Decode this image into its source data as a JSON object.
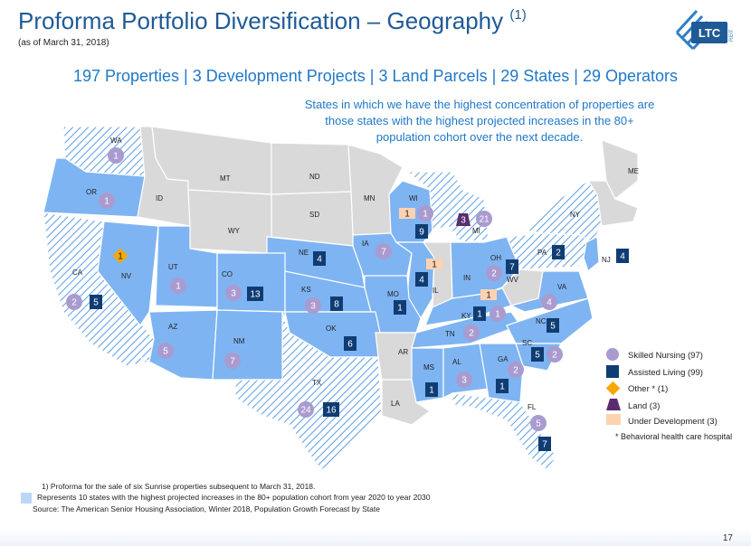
{
  "header": {
    "title": "Proforma Portfolio Diversification – Geography",
    "title_sup": "(1)",
    "as_of": "(as of March 31, 2018)",
    "logo_text": "LTC",
    "logo_subtext": "REIT"
  },
  "headline": "197 Properties | 3 Development Projects | 3 Land Parcels | 29 States | 29 Operators",
  "callout": "States in which we have the highest concentration of properties are those states with the highest projected increases in the 80+ population cohort over the next decade.",
  "colors": {
    "highlighted_state": "#7fb4f2",
    "other_state": "#d9d9d9",
    "hatch": "#5b9ee8",
    "skilled_nursing": "#a99bd0",
    "assisted_living": "#0f3d73",
    "other": "#f5a800",
    "land": "#5a2d6f",
    "under_development": "#fbd3b0",
    "title": "#1f5a96"
  },
  "states": [
    {
      "abbr": "WA",
      "style": "hatch",
      "skilled": "1"
    },
    {
      "abbr": "OR",
      "style": "blue",
      "skilled": "1"
    },
    {
      "abbr": "ID",
      "style": "gray"
    },
    {
      "abbr": "MT",
      "style": "gray"
    },
    {
      "abbr": "ND",
      "style": "gray"
    },
    {
      "abbr": "MN",
      "style": "gray"
    },
    {
      "abbr": "WI",
      "style": "blue",
      "skilled": "1",
      "assisted": "9",
      "underdev": "1"
    },
    {
      "abbr": "MI",
      "style": "hatch",
      "skilled": "21",
      "land": "3"
    },
    {
      "abbr": "SD",
      "style": "gray"
    },
    {
      "abbr": "WY",
      "style": "gray"
    },
    {
      "abbr": "NE",
      "style": "blue",
      "assisted": "4"
    },
    {
      "abbr": "IA",
      "style": "blue",
      "skilled": "7"
    },
    {
      "abbr": "IL",
      "style": "blue",
      "assisted": "4",
      "underdev": "1"
    },
    {
      "abbr": "IN",
      "style": "gray"
    },
    {
      "abbr": "OH",
      "style": "blue",
      "skilled": "2",
      "assisted": "7"
    },
    {
      "abbr": "PA",
      "style": "hatch",
      "assisted": "2"
    },
    {
      "abbr": "NY",
      "style": "hatch"
    },
    {
      "abbr": "ME",
      "style": "gray"
    },
    {
      "abbr": "NJ",
      "style": "blue",
      "assisted": "4"
    },
    {
      "abbr": "CA",
      "style": "hatch",
      "skilled": "2",
      "assisted": "5"
    },
    {
      "abbr": "NV",
      "style": "blue",
      "other": "1"
    },
    {
      "abbr": "UT",
      "style": "blue",
      "skilled": "1"
    },
    {
      "abbr": "CO",
      "style": "blue",
      "skilled": "3",
      "assisted": "13"
    },
    {
      "abbr": "KS",
      "style": "blue",
      "skilled": "3",
      "assisted": "8"
    },
    {
      "abbr": "MO",
      "style": "blue",
      "assisted": "1"
    },
    {
      "abbr": "KY",
      "style": "blue",
      "skilled": "1",
      "assisted": "1",
      "underdev": "1"
    },
    {
      "abbr": "WV",
      "style": "gray"
    },
    {
      "abbr": "VA",
      "style": "blue",
      "skilled": "4"
    },
    {
      "abbr": "AZ",
      "style": "blue",
      "skilled": "5"
    },
    {
      "abbr": "NM",
      "style": "blue",
      "skilled": "7"
    },
    {
      "abbr": "OK",
      "style": "blue",
      "assisted": "6"
    },
    {
      "abbr": "AR",
      "style": "gray"
    },
    {
      "abbr": "TN",
      "style": "blue",
      "skilled": "2"
    },
    {
      "abbr": "NC",
      "style": "blue",
      "assisted": "5"
    },
    {
      "abbr": "SC",
      "style": "blue",
      "skilled": "2",
      "assisted": "5"
    },
    {
      "abbr": "TX",
      "style": "hatch",
      "skilled": "24",
      "assisted": "16"
    },
    {
      "abbr": "LA",
      "style": "gray"
    },
    {
      "abbr": "MS",
      "style": "blue",
      "assisted": "1"
    },
    {
      "abbr": "AL",
      "style": "blue",
      "skilled": "3"
    },
    {
      "abbr": "GA",
      "style": "blue",
      "skilled": "2",
      "assisted": "1"
    },
    {
      "abbr": "FL",
      "style": "hatch",
      "skilled": "5",
      "assisted": "7"
    }
  ],
  "legend": [
    {
      "symbol": "skilled-nursing",
      "label": "Skilled Nursing (97)"
    },
    {
      "symbol": "assisted-living",
      "label": "Assisted Living (99)"
    },
    {
      "symbol": "other",
      "label": "Other * (1)"
    },
    {
      "symbol": "land",
      "label": "Land (3)"
    },
    {
      "symbol": "under-development",
      "label": "Under Development (3)"
    }
  ],
  "behavioral_note": "* Behavioral health care hospital",
  "notes": {
    "footnote": "1)  Proforma for the sale of six Sunrise properties subsequent to March 31, 2018.",
    "highlight": "Represents 10 states with the highest projected increases in the 80+ population cohort from year 2020 to year 2030",
    "source": "Source:  The American Senior Housing Association, Winter 2018, Population Growth Forecast by State"
  },
  "page_number": "17"
}
